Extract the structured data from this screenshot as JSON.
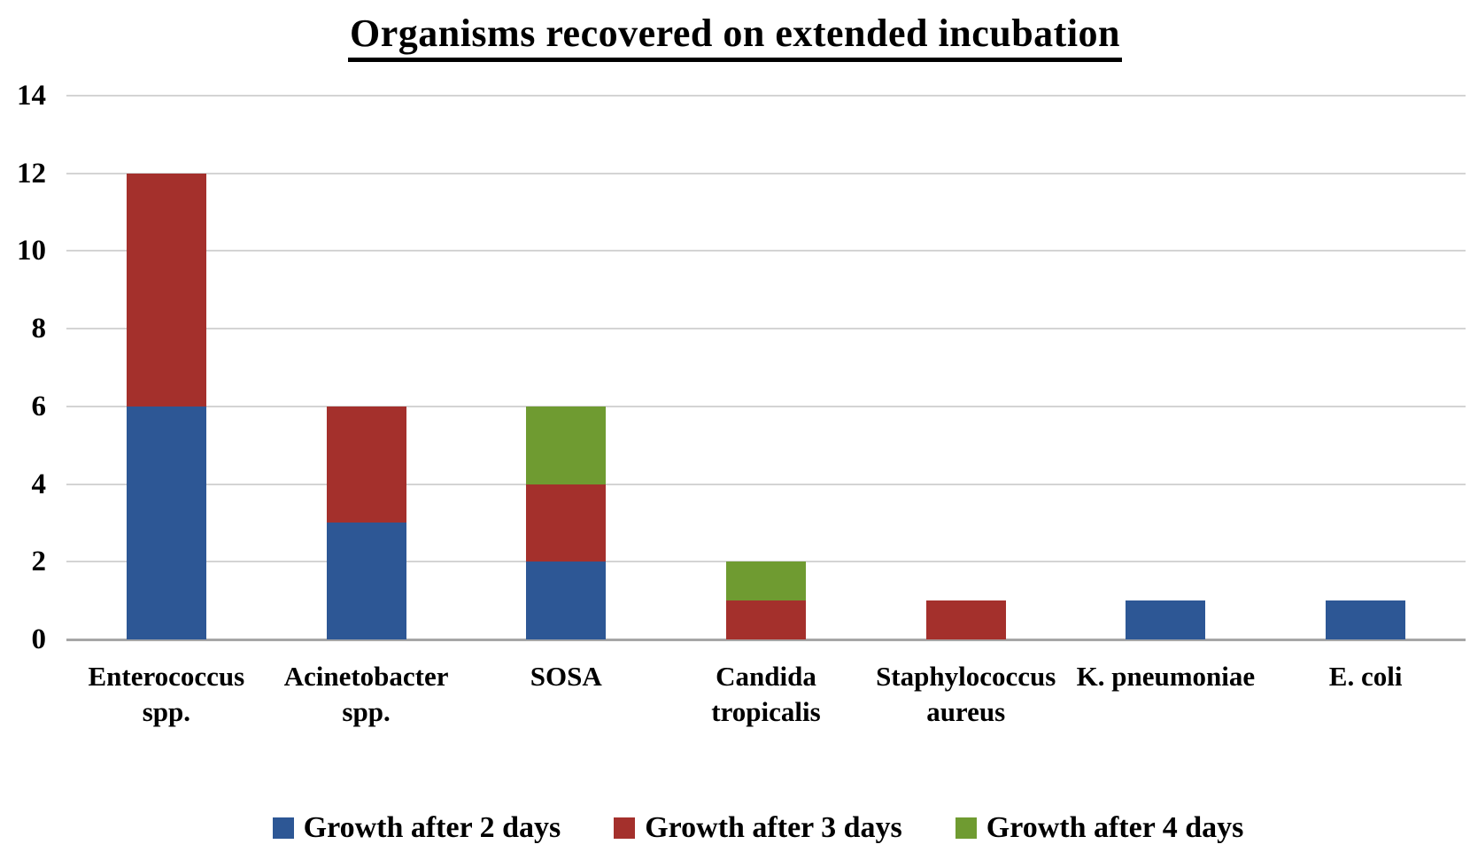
{
  "figure": {
    "background": "#FFFFFF"
  },
  "chart_data": {
    "type": "bar",
    "stacked": true,
    "title": "Organisms recovered on extended incubation",
    "categories": [
      "Enterococcus spp.",
      "Acinetobacter spp.",
      "SOSA",
      "Candida tropicalis",
      "Staphylococcus aureus",
      "K. pneumoniae",
      "E. coli"
    ],
    "categories_wrapped": [
      [
        "Enterococcus",
        "spp."
      ],
      [
        "Acinetobacter",
        "spp."
      ],
      [
        "SOSA"
      ],
      [
        "Candida",
        "tropicalis"
      ],
      [
        "Staphylococcus",
        "aureus"
      ],
      [
        "K. pneumoniae"
      ],
      [
        "E. coli"
      ]
    ],
    "series": [
      {
        "name": "Growth after 2 days",
        "color": "#2D5795",
        "values": [
          6,
          3,
          2,
          0,
          0,
          1,
          1
        ]
      },
      {
        "name": "Growth after 3 days",
        "color": "#A4302C",
        "values": [
          6,
          3,
          2,
          1,
          1,
          0,
          0
        ]
      },
      {
        "name": "Growth after 4 days",
        "color": "#6F9B31",
        "values": [
          0,
          0,
          2,
          1,
          0,
          0,
          0
        ]
      }
    ],
    "totals": [
      12,
      6,
      6,
      2,
      1,
      1,
      1
    ],
    "ylim": [
      0,
      14
    ],
    "y_ticks": [
      0,
      2,
      4,
      6,
      8,
      10,
      12,
      14
    ],
    "xlabel": "",
    "ylabel": "",
    "grid": true,
    "legend_position": "bottom",
    "colors": {
      "gridline": "#D4D4D4",
      "axis_line": "#A6A6A6",
      "text": "#000000"
    }
  }
}
